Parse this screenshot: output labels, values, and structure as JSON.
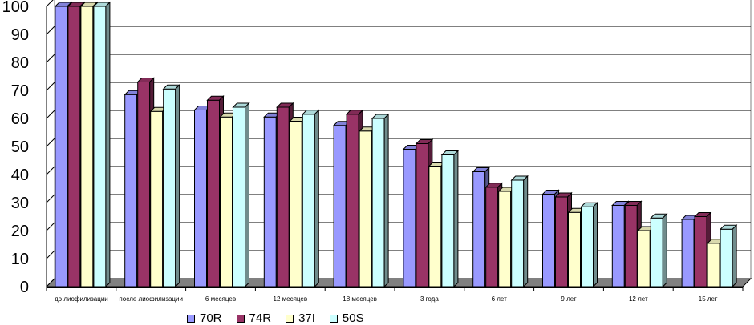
{
  "chart_data": {
    "type": "bar",
    "style": "3d-clustered-column",
    "title": "",
    "xlabel": "",
    "ylabel": "",
    "ylim": [
      0,
      100
    ],
    "yticks": [
      0,
      10,
      20,
      30,
      40,
      50,
      60,
      70,
      80,
      90,
      100
    ],
    "grid": true,
    "legend_position": "bottom",
    "categories": [
      "до лиофилизации",
      "после лиофилизации",
      "6 месяцев",
      "12 месяцев",
      "18 месяцев",
      "3 года",
      "6 лет",
      "9 лет",
      "12 лет",
      "15 лет"
    ],
    "series": [
      {
        "name": "70R",
        "color": "#9999ff",
        "values": [
          100,
          68.5,
          63,
          60.5,
          57.5,
          49,
          41,
          33,
          29,
          24
        ]
      },
      {
        "name": "74R",
        "color": "#993366",
        "values": [
          100,
          73,
          66.5,
          64,
          61.5,
          51,
          35.5,
          32,
          29,
          25
        ]
      },
      {
        "name": "37I",
        "color": "#ffffcc",
        "values": [
          100,
          62.5,
          60.5,
          59,
          55.5,
          43,
          34,
          26.5,
          20,
          15.5
        ]
      },
      {
        "name": "50S",
        "color": "#ccffff",
        "values": [
          100,
          70.5,
          64,
          61.5,
          60,
          47,
          38,
          28.5,
          24.5,
          20.5
        ]
      }
    ]
  }
}
